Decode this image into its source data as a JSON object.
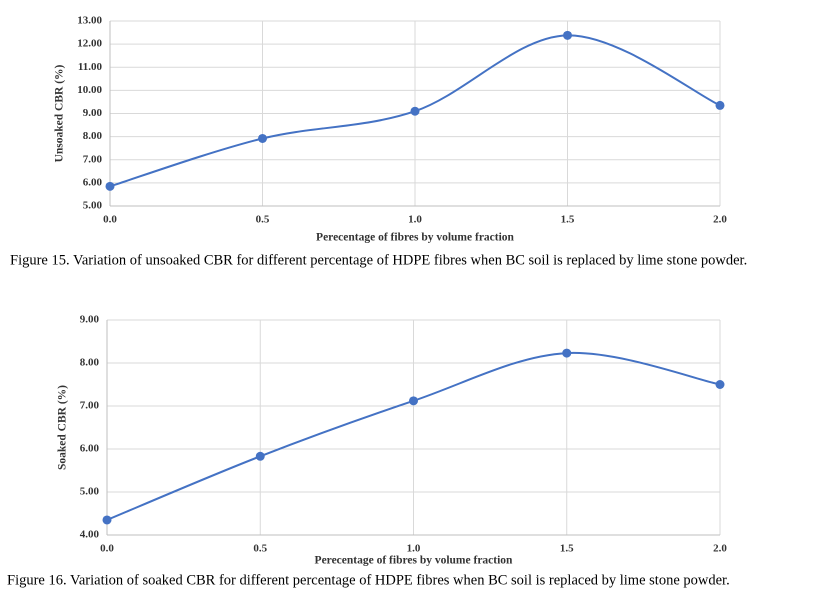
{
  "chart_data": [
    {
      "type": "line",
      "smooth": true,
      "color": "#4472c4",
      "grid": true,
      "x_label": "Perecentage of fibres by volume fraction",
      "y_label": "Unsoaked CBR (%)",
      "caption": "Figure 15. Variation of unsoaked CBR for different percentage of HDPE fibres when BC soil is replaced by lime stone powder.",
      "x": [
        0,
        0.5,
        1,
        1.5,
        2
      ],
      "values": [
        5.85,
        7.92,
        9.1,
        12.38,
        9.35
      ],
      "xlim": [
        0,
        2
      ],
      "xticks": [
        {
          "value": 0,
          "label": "0.0"
        },
        {
          "value": 0.5,
          "label": "0.5"
        },
        {
          "value": 1,
          "label": "1.0"
        },
        {
          "value": 1.5,
          "label": "1.5"
        },
        {
          "value": 2,
          "label": "2.0"
        }
      ],
      "ylim": [
        5,
        13
      ],
      "yticks": [
        {
          "value": 5,
          "label": "5.00"
        },
        {
          "value": 6,
          "label": "6.00"
        },
        {
          "value": 7,
          "label": "7.00"
        },
        {
          "value": 8,
          "label": "8.00"
        },
        {
          "value": 9,
          "label": "9.00"
        },
        {
          "value": 10,
          "label": "10.00"
        },
        {
          "value": 11,
          "label": "11.00"
        },
        {
          "value": 12,
          "label": "12.00"
        },
        {
          "value": 13,
          "label": "13.00"
        }
      ]
    },
    {
      "type": "line",
      "smooth": true,
      "color": "#4472c4",
      "grid": true,
      "x_label": "Perecentage of fibres by volume fraction",
      "y_label": "Soaked CBR (%)",
      "caption": "Figure 16. Variation of soaked CBR for different percentage of HDPE fibres when BC soil is replaced by lime stone powder.",
      "x": [
        0,
        0.5,
        1,
        1.5,
        2
      ],
      "values": [
        4.35,
        5.83,
        7.12,
        8.23,
        7.5
      ],
      "xlim": [
        0,
        2
      ],
      "xticks": [
        {
          "value": 0,
          "label": "0.0"
        },
        {
          "value": 0.5,
          "label": "0.5"
        },
        {
          "value": 1,
          "label": "1.0"
        },
        {
          "value": 1.5,
          "label": "1.5"
        },
        {
          "value": 2,
          "label": "2.0"
        }
      ],
      "ylim": [
        4,
        9
      ],
      "yticks": [
        {
          "value": 4,
          "label": "4.00"
        },
        {
          "value": 5,
          "label": "5.00"
        },
        {
          "value": 6,
          "label": "6.00"
        },
        {
          "value": 7,
          "label": "7.00"
        },
        {
          "value": 8,
          "label": "8.00"
        },
        {
          "value": 9,
          "label": "9.00"
        }
      ]
    }
  ]
}
